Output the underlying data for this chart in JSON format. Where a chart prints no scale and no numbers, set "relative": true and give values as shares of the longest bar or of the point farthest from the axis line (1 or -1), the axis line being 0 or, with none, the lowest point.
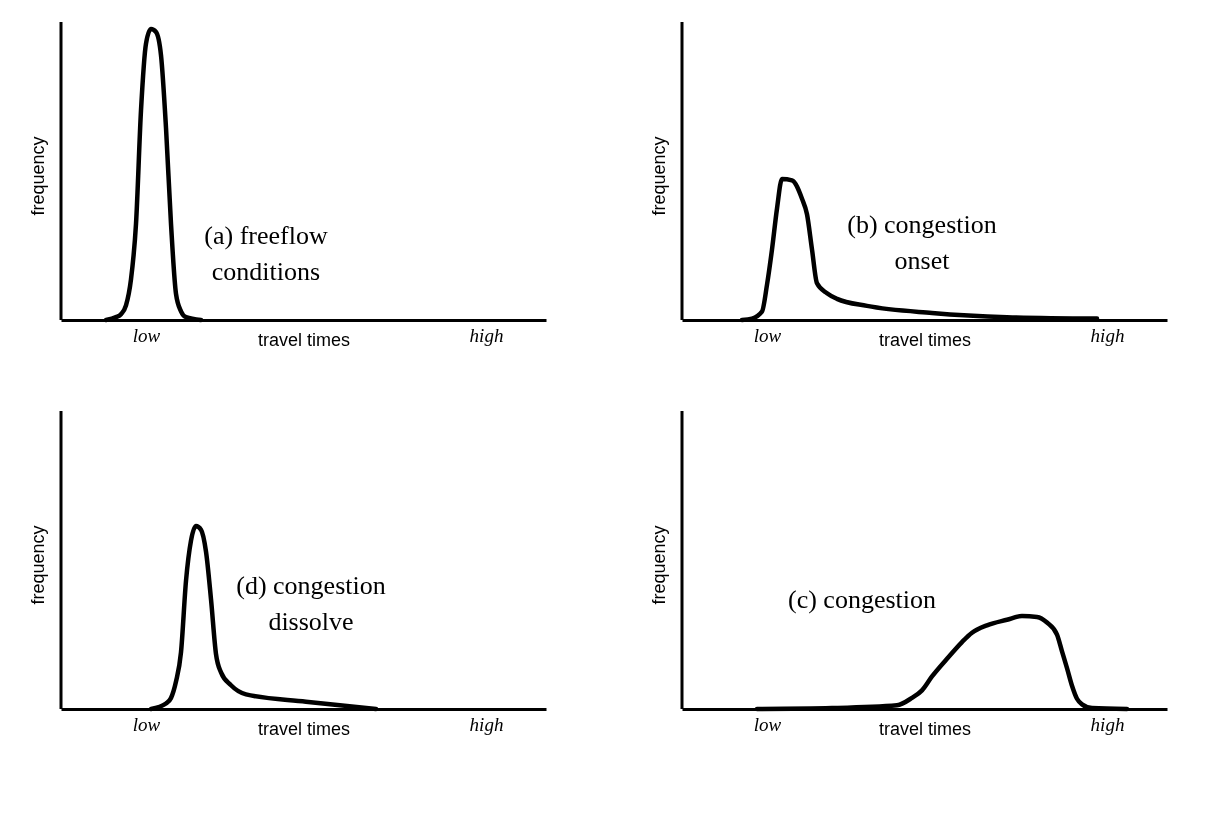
{
  "chart_data": [
    {
      "type": "line",
      "relative": true,
      "xlabel": "travel times",
      "ylabel": "frequency",
      "annotations": [
        "(a) freeflow conditions"
      ],
      "tick_labels": "x",
      "categories": [
        null,
        null,
        null,
        null,
        null,
        null,
        null,
        null,
        null,
        null,
        null,
        null,
        null,
        null,
        null,
        null,
        null,
        "low",
        null,
        null,
        null,
        null,
        null,
        null,
        null,
        null,
        null,
        null,
        null,
        null,
        null,
        null,
        null,
        null,
        null,
        null,
        null,
        null,
        null,
        null,
        null,
        null,
        null,
        null,
        null,
        null,
        null,
        null,
        null,
        null,
        null,
        null,
        null,
        null,
        null,
        null,
        null,
        null,
        null,
        null,
        null,
        null,
        null,
        null,
        null,
        null,
        null,
        null,
        null,
        null,
        null,
        null,
        null,
        null,
        null,
        null,
        null,
        null,
        null,
        null,
        null,
        null,
        null,
        null,
        null,
        "high",
        null,
        null,
        null,
        null,
        null,
        null,
        null,
        null,
        null,
        null,
        null
      ],
      "series": [
        {
          "color": "#000000",
          "values": [
            null,
            null,
            null,
            null,
            null,
            null,
            null,
            null,
            null,
            0,
            null,
            0.01,
            0.02,
            0.05,
            0.14,
            0.33,
            0.72,
            0.95,
            1,
            0.99,
            0.91,
            0.66,
            0.33,
            0.09,
            0.03,
            0.01,
            null,
            null,
            0,
            null,
            null,
            null,
            null,
            null,
            null,
            null,
            null,
            null,
            null,
            null,
            null,
            null,
            null,
            null,
            null,
            null,
            null,
            null,
            null,
            null,
            null,
            null,
            null,
            null,
            null,
            null,
            null,
            null,
            null,
            null,
            null,
            null,
            null,
            null,
            null,
            null,
            null,
            null,
            null,
            null,
            null,
            null,
            null,
            null,
            null,
            null,
            null,
            null,
            null,
            null,
            null,
            null,
            null,
            null,
            null,
            null,
            null,
            null,
            null,
            null,
            null,
            null,
            null,
            null,
            null,
            null,
            null
          ]
        }
      ]
    },
    {
      "type": "line",
      "relative": true,
      "xlabel": "travel times",
      "ylabel": "frequency",
      "annotations": [
        "(b) congestion onset"
      ],
      "tick_labels": "x",
      "categories": [
        null,
        null,
        null,
        null,
        null,
        null,
        null,
        null,
        null,
        null,
        null,
        null,
        null,
        null,
        null,
        null,
        null,
        "low",
        null,
        null,
        null,
        null,
        null,
        null,
        null,
        null,
        null,
        null,
        null,
        null,
        null,
        null,
        null,
        null,
        null,
        null,
        null,
        null,
        null,
        null,
        null,
        null,
        null,
        null,
        null,
        null,
        null,
        null,
        null,
        null,
        null,
        null,
        null,
        null,
        null,
        null,
        null,
        null,
        null,
        null,
        null,
        null,
        null,
        null,
        null,
        null,
        null,
        null,
        null,
        null,
        null,
        null,
        null,
        null,
        null,
        null,
        null,
        null,
        null,
        null,
        null,
        null,
        null,
        null,
        null,
        "high",
        null,
        null,
        null,
        null,
        null,
        null,
        null,
        null,
        null,
        null,
        null
      ],
      "series": [
        {
          "color": "#000000",
          "values": [
            null,
            null,
            null,
            null,
            null,
            null,
            null,
            null,
            null,
            null,
            null,
            null,
            0,
            null,
            0.01,
            null,
            0.06,
            0.25,
            0.5,
            0.79,
            1,
            null,
            0.99,
            null,
            0.86,
            0.75,
            0.5,
            0.26,
            null,
            0.19,
            null,
            0.15,
            null,
            null,
            null,
            null,
            null,
            0.1,
            null,
            null,
            null,
            null,
            null,
            null,
            null,
            null,
            null,
            null,
            null,
            null,
            0.05,
            null,
            null,
            null,
            null,
            null,
            null,
            null,
            null,
            null,
            null,
            null,
            null,
            null,
            null,
            0.02,
            null,
            null,
            null,
            null,
            null,
            null,
            null,
            null,
            null,
            null,
            null,
            null,
            null,
            null,
            null,
            null,
            null,
            0.01,
            null,
            null,
            null,
            null,
            null,
            null,
            null,
            null,
            null,
            null,
            null,
            null,
            null
          ]
        }
      ]
    },
    {
      "type": "line",
      "relative": true,
      "xlabel": "travel times",
      "ylabel": "frequency",
      "annotations": [
        "(d) congestion dissolve"
      ],
      "tick_labels": "x",
      "categories": [
        null,
        null,
        null,
        null,
        null,
        null,
        null,
        null,
        null,
        null,
        null,
        null,
        null,
        null,
        null,
        null,
        null,
        "low",
        null,
        null,
        null,
        null,
        null,
        null,
        null,
        null,
        null,
        null,
        null,
        null,
        null,
        null,
        null,
        null,
        null,
        null,
        null,
        null,
        null,
        null,
        null,
        null,
        null,
        null,
        null,
        null,
        null,
        null,
        null,
        null,
        null,
        null,
        null,
        null,
        null,
        null,
        null,
        null,
        null,
        null,
        null,
        null,
        null,
        null,
        null,
        null,
        null,
        null,
        null,
        null,
        null,
        null,
        null,
        null,
        null,
        null,
        null,
        null,
        null,
        null,
        null,
        null,
        null,
        null,
        null,
        "high",
        null,
        null,
        null,
        null,
        null,
        null,
        null,
        null,
        null,
        null,
        null
      ],
      "series": [
        {
          "color": "#000000",
          "values": [
            null,
            null,
            null,
            null,
            null,
            null,
            null,
            null,
            null,
            null,
            null,
            null,
            null,
            null,
            null,
            null,
            null,
            null,
            0,
            null,
            null,
            0.03,
            0.06,
            0.15,
            0.31,
            0.7,
            0.92,
            1,
            0.98,
            0.86,
            0.6,
            0.3,
            0.2,
            null,
            0.13,
            null,
            null,
            0.08,
            null,
            null,
            null,
            null,
            null,
            null,
            null,
            null,
            null,
            null,
            null,
            0.04,
            null,
            null,
            null,
            null,
            null,
            null,
            null,
            null,
            null,
            null,
            null,
            null,
            null,
            0,
            null,
            null,
            null,
            null,
            null,
            null,
            null,
            null,
            null,
            null,
            null,
            null,
            null,
            null,
            null,
            null,
            null,
            null,
            null,
            null,
            null,
            null,
            null,
            null,
            null,
            null,
            null,
            null,
            null,
            null,
            null,
            null,
            null
          ]
        }
      ]
    },
    {
      "type": "line",
      "relative": true,
      "xlabel": "travel times",
      "ylabel": "frequency",
      "annotations": [
        "(c) congestion"
      ],
      "tick_labels": "x",
      "categories": [
        null,
        null,
        null,
        null,
        null,
        null,
        null,
        null,
        null,
        null,
        null,
        null,
        null,
        null,
        null,
        null,
        null,
        "low",
        null,
        null,
        null,
        null,
        null,
        null,
        null,
        null,
        null,
        null,
        null,
        null,
        null,
        null,
        null,
        null,
        null,
        null,
        null,
        null,
        null,
        null,
        null,
        null,
        null,
        null,
        null,
        null,
        null,
        null,
        null,
        null,
        null,
        null,
        null,
        null,
        null,
        null,
        null,
        null,
        null,
        null,
        null,
        null,
        null,
        null,
        null,
        null,
        null,
        null,
        null,
        null,
        null,
        null,
        null,
        null,
        null,
        null,
        null,
        null,
        null,
        null,
        null,
        null,
        null,
        null,
        null,
        "high",
        null,
        null,
        null,
        null,
        null,
        null,
        null,
        null,
        null,
        null,
        null
      ],
      "series": [
        {
          "color": "#000000",
          "values": [
            null,
            null,
            null,
            null,
            null,
            null,
            null,
            null,
            null,
            null,
            null,
            null,
            null,
            null,
            null,
            0,
            null,
            null,
            null,
            null,
            null,
            null,
            null,
            null,
            null,
            null,
            null,
            null,
            null,
            null,
            0.01,
            null,
            null,
            null,
            null,
            null,
            null,
            null,
            null,
            null,
            null,
            null,
            null,
            0.04,
            null,
            null,
            0.12,
            null,
            0.2,
            null,
            0.35,
            null,
            null,
            0.54,
            null,
            null,
            0.72,
            null,
            0.82,
            null,
            null,
            0.9,
            null,
            null,
            null,
            0.96,
            null,
            null,
            1,
            null,
            null,
            0.99,
            null,
            0.93,
            null,
            0.8,
            0.62,
            0.44,
            0.25,
            0.11,
            0.05,
            null,
            0.01,
            null,
            null,
            null,
            null,
            null,
            null,
            0,
            null,
            null,
            null,
            null,
            null,
            null,
            null
          ]
        }
      ]
    }
  ]
}
